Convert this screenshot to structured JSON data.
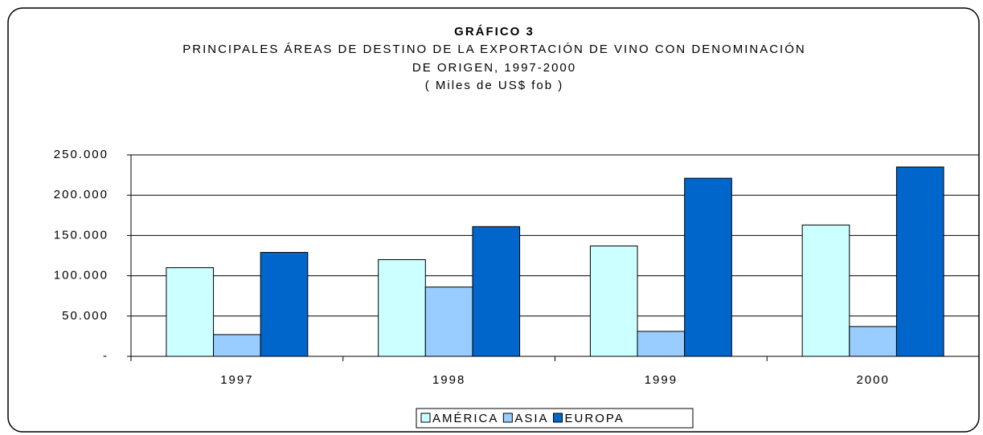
{
  "chart_data": {
    "type": "bar",
    "title": "GRÁFICO 3",
    "subtitle": [
      "PRINCIPALES ÁREAS DE DESTINO DE LA EXPORTACIÓN DE VINO CON DENOMINACIÓN",
      "DE ORIGEN, 1997-2000",
      "( Miles de US$ fob )"
    ],
    "categories": [
      "1997",
      "1998",
      "1999",
      "2000"
    ],
    "series": [
      {
        "name": "AMÉRICA",
        "color": "#ccffff",
        "values": [
          110000,
          120000,
          137000,
          163000
        ]
      },
      {
        "name": "ASIA",
        "color": "#99ccff",
        "values": [
          27000,
          86000,
          31000,
          37000
        ]
      },
      {
        "name": "EUROPA",
        "color": "#0066cc",
        "values": [
          129000,
          161000,
          221000,
          235000
        ]
      }
    ],
    "ylim": [
      0,
      250000
    ],
    "yticks": [
      {
        "value": 0,
        "label": "-"
      },
      {
        "value": 50000,
        "label": "50.000"
      },
      {
        "value": 100000,
        "label": "100.000"
      },
      {
        "value": 150000,
        "label": "150.000"
      },
      {
        "value": 200000,
        "label": "200.000"
      },
      {
        "value": 250000,
        "label": "250.000"
      }
    ],
    "grid": true,
    "legend": "bottom"
  }
}
